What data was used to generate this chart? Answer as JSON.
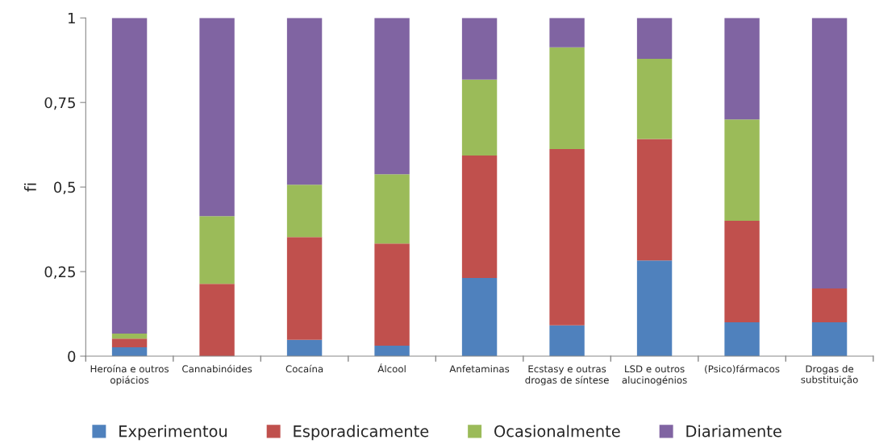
{
  "chart_data": {
    "type": "bar",
    "stacked": true,
    "ylabel": "fi",
    "categories": [
      "Heroína e outros opiácios",
      "Cannabinóides",
      "Cocaína",
      "Álcool",
      "Anfetaminas",
      "Ecstasy e outras drogas de síntese",
      "LSD e outros alucinogénios",
      "(Psico)fármacos",
      "Drogas de substituição"
    ],
    "series": [
      {
        "name": "Experimentou",
        "color": "#4f81bd",
        "values": [
          0.026,
          0,
          0.048,
          0.031,
          0.231,
          0.091,
          0.283,
          0.1,
          0.1
        ]
      },
      {
        "name": "Esporadicamente",
        "color": "#c0504d",
        "values": [
          0.026,
          0.214,
          0.304,
          0.302,
          0.362,
          0.521,
          0.359,
          0.3,
          0.1
        ]
      },
      {
        "name": "Ocasionalmente",
        "color": "#9bbb59",
        "values": [
          0.015,
          0.2,
          0.155,
          0.205,
          0.225,
          0.301,
          0.237,
          0.3,
          0
        ]
      },
      {
        "name": "Diariamente",
        "color": "#8064a2",
        "values": [
          0.933,
          0.586,
          0.493,
          0.462,
          0.182,
          0.087,
          0.121,
          0.3,
          0.8
        ]
      }
    ],
    "ylim": [
      0,
      1
    ],
    "yticks": [
      0,
      {
        "value": 0.25,
        "label": "0,25"
      },
      {
        "value": 0.5,
        "label": "0,5"
      },
      {
        "value": 0.75,
        "label": "0,75"
      },
      1
    ],
    "grid": false,
    "legend": "bottom"
  }
}
